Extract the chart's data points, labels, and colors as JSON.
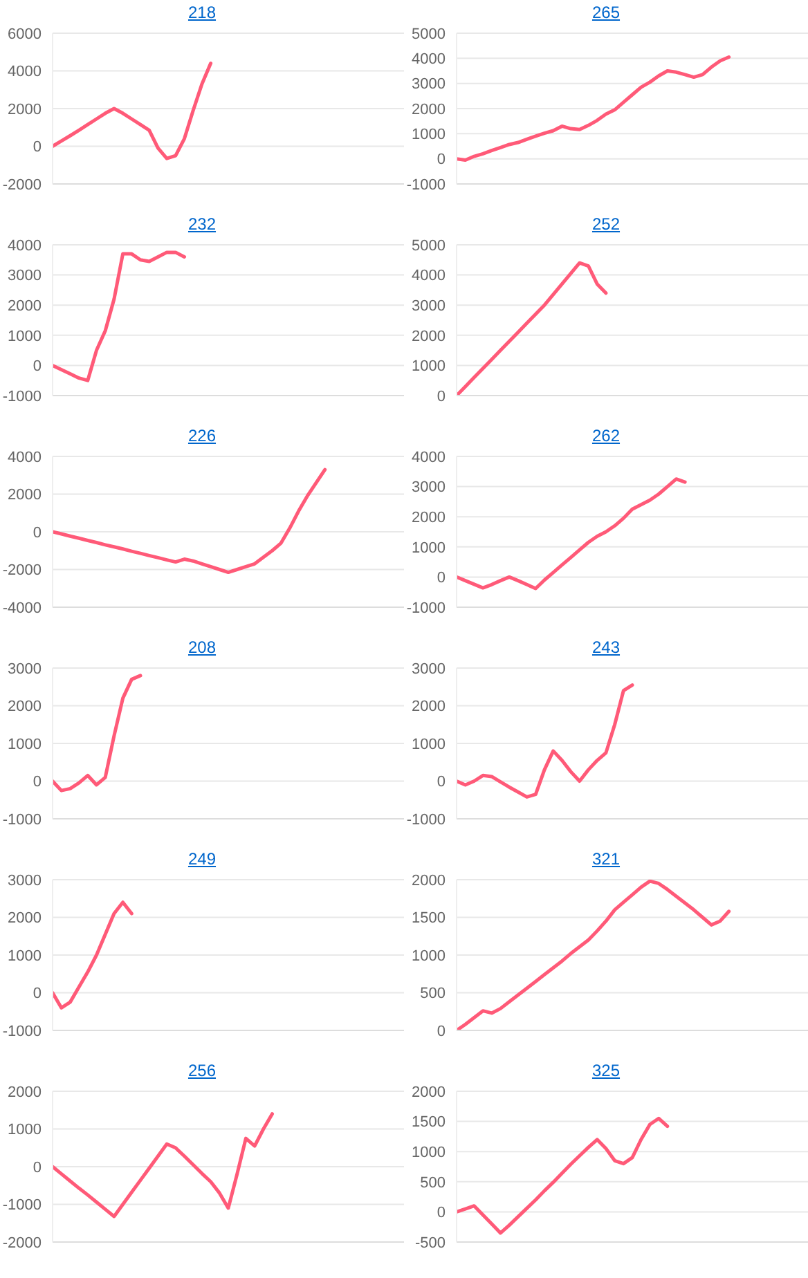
{
  "chart_data": [
    {
      "type": "line",
      "title": "218",
      "categories": [
        null,
        null,
        null,
        null,
        null,
        null,
        null,
        null,
        null,
        null,
        null,
        null,
        null,
        null,
        null,
        null,
        null,
        null,
        null,
        null,
        null,
        null,
        null,
        null,
        null,
        null,
        null,
        null,
        null,
        null,
        null,
        null,
        null,
        null,
        null,
        null,
        null,
        null,
        null,
        null,
        null
      ],
      "series": [
        {
          "color": "#ff5a78",
          "values": [
            0,
            280,
            560,
            850,
            1150,
            1450,
            1750,
            2000,
            1750,
            1450,
            1150,
            850,
            -100,
            -650,
            -500,
            400,
            1900,
            3300,
            4400,
            null,
            null,
            null,
            null,
            null,
            null,
            null,
            null,
            null,
            null,
            null,
            null,
            null,
            null,
            null,
            null,
            null,
            null,
            null,
            null,
            null,
            null
          ]
        }
      ],
      "ylim": [
        -2000,
        6000
      ],
      "yticks": [
        -2000,
        0,
        2000,
        4000,
        6000
      ],
      "grid": "y",
      "marker": "none",
      "line_style": "solid"
    },
    {
      "type": "line",
      "title": "265",
      "categories": [
        null,
        null,
        null,
        null,
        null,
        null,
        null,
        null,
        null,
        null,
        null,
        null,
        null,
        null,
        null,
        null,
        null,
        null,
        null,
        null,
        null,
        null,
        null,
        null,
        null,
        null,
        null,
        null,
        null,
        null,
        null,
        null,
        null,
        null,
        null,
        null,
        null,
        null,
        null,
        null,
        null
      ],
      "series": [
        {
          "color": "#ff5a78",
          "values": [
            0,
            -50,
            100,
            200,
            330,
            450,
            570,
            650,
            780,
            900,
            1020,
            1120,
            1300,
            1200,
            1170,
            1330,
            1530,
            1780,
            1950,
            2250,
            2550,
            2850,
            3050,
            3300,
            3500,
            3450,
            3350,
            3250,
            3350,
            3650,
            3900,
            4050,
            null,
            null,
            null,
            null,
            null,
            null,
            null,
            null,
            null
          ]
        }
      ],
      "ylim": [
        -1000,
        5000
      ],
      "yticks": [
        -1000,
        0,
        1000,
        2000,
        3000,
        4000,
        5000
      ],
      "grid": "y",
      "marker": "none",
      "line_style": "solid"
    },
    {
      "type": "line",
      "title": "232",
      "categories": [
        null,
        null,
        null,
        null,
        null,
        null,
        null,
        null,
        null,
        null,
        null,
        null,
        null,
        null,
        null,
        null,
        null,
        null,
        null,
        null,
        null,
        null,
        null,
        null,
        null,
        null,
        null,
        null,
        null,
        null,
        null,
        null,
        null,
        null,
        null,
        null,
        null,
        null,
        null,
        null,
        null
      ],
      "series": [
        {
          "color": "#ff5a78",
          "values": [
            0,
            -140,
            -280,
            -420,
            -500,
            500,
            1150,
            2200,
            3700,
            3700,
            3500,
            3450,
            3600,
            3750,
            3750,
            3600,
            null,
            null,
            null,
            null,
            null,
            null,
            null,
            null,
            null,
            null,
            null,
            null,
            null,
            null,
            null,
            null,
            null,
            null,
            null,
            null,
            null,
            null,
            null,
            null,
            null
          ]
        }
      ],
      "ylim": [
        -1000,
        4000
      ],
      "yticks": [
        -1000,
        0,
        1000,
        2000,
        3000,
        4000
      ],
      "grid": "y",
      "marker": "none",
      "line_style": "solid"
    },
    {
      "type": "line",
      "title": "252",
      "categories": [
        null,
        null,
        null,
        null,
        null,
        null,
        null,
        null,
        null,
        null,
        null,
        null,
        null,
        null,
        null,
        null,
        null,
        null,
        null,
        null,
        null,
        null,
        null,
        null,
        null,
        null,
        null,
        null,
        null,
        null,
        null,
        null,
        null,
        null,
        null,
        null,
        null,
        null,
        null,
        null,
        null
      ],
      "series": [
        {
          "color": "#ff5a78",
          "values": [
            0,
            300,
            600,
            900,
            1200,
            1500,
            1800,
            2100,
            2400,
            2700,
            3000,
            3350,
            3700,
            4050,
            4400,
            4300,
            3700,
            3400,
            null,
            null,
            null,
            null,
            null,
            null,
            null,
            null,
            null,
            null,
            null,
            null,
            null,
            null,
            null,
            null,
            null,
            null,
            null,
            null,
            null,
            null,
            null
          ]
        }
      ],
      "ylim": [
        0,
        5000
      ],
      "yticks": [
        0,
        1000,
        2000,
        3000,
        4000,
        5000
      ],
      "grid": "y",
      "marker": "none",
      "line_style": "solid"
    },
    {
      "type": "line",
      "title": "226",
      "categories": [
        null,
        null,
        null,
        null,
        null,
        null,
        null,
        null,
        null,
        null,
        null,
        null,
        null,
        null,
        null,
        null,
        null,
        null,
        null,
        null,
        null,
        null,
        null,
        null,
        null,
        null,
        null,
        null,
        null,
        null,
        null,
        null,
        null,
        null,
        null,
        null,
        null,
        null,
        null,
        null,
        null
      ],
      "series": [
        {
          "color": "#ff5a78",
          "values": [
            0,
            -110,
            -230,
            -340,
            -460,
            -570,
            -690,
            -800,
            -910,
            -1030,
            -1140,
            -1260,
            -1370,
            -1490,
            -1600,
            -1450,
            -1550,
            -1700,
            -1850,
            -2000,
            -2150,
            -2000,
            -1850,
            -1700,
            -1350,
            -1000,
            -600,
            200,
            1100,
            1900,
            2600,
            3300,
            null,
            null,
            null,
            null,
            null,
            null,
            null,
            null,
            null
          ]
        }
      ],
      "ylim": [
        -4000,
        4000
      ],
      "yticks": [
        -4000,
        -2000,
        0,
        2000,
        4000
      ],
      "grid": "y",
      "marker": "none",
      "line_style": "solid"
    },
    {
      "type": "line",
      "title": "262",
      "categories": [
        null,
        null,
        null,
        null,
        null,
        null,
        null,
        null,
        null,
        null,
        null,
        null,
        null,
        null,
        null,
        null,
        null,
        null,
        null,
        null,
        null,
        null,
        null,
        null,
        null,
        null,
        null,
        null,
        null,
        null,
        null,
        null,
        null,
        null,
        null,
        null,
        null,
        null,
        null,
        null,
        null
      ],
      "series": [
        {
          "color": "#ff5a78",
          "values": [
            0,
            -120,
            -240,
            -360,
            -250,
            -120,
            0,
            -120,
            -250,
            -380,
            -100,
            150,
            400,
            650,
            900,
            1150,
            1350,
            1500,
            1700,
            1950,
            2250,
            2400,
            2550,
            2750,
            3000,
            3250,
            3150,
            null,
            null,
            null,
            null,
            null,
            null,
            null,
            null,
            null,
            null,
            null,
            null,
            null,
            null
          ]
        }
      ],
      "ylim": [
        -1000,
        4000
      ],
      "yticks": [
        -1000,
        0,
        1000,
        2000,
        3000,
        4000
      ],
      "grid": "y",
      "marker": "none",
      "line_style": "solid"
    },
    {
      "type": "line",
      "title": "208",
      "categories": [
        null,
        null,
        null,
        null,
        null,
        null,
        null,
        null,
        null,
        null,
        null,
        null,
        null,
        null,
        null,
        null,
        null,
        null,
        null,
        null,
        null,
        null,
        null,
        null,
        null,
        null,
        null,
        null,
        null,
        null,
        null,
        null,
        null,
        null,
        null,
        null,
        null,
        null,
        null,
        null,
        null
      ],
      "series": [
        {
          "color": "#ff5a78",
          "values": [
            0,
            -250,
            -200,
            -50,
            150,
            -100,
            100,
            1200,
            2200,
            2700,
            2800,
            null,
            null,
            null,
            null,
            null,
            null,
            null,
            null,
            null,
            null,
            null,
            null,
            null,
            null,
            null,
            null,
            null,
            null,
            null,
            null,
            null,
            null,
            null,
            null,
            null,
            null,
            null,
            null,
            null,
            null
          ]
        }
      ],
      "ylim": [
        -1000,
        3000
      ],
      "yticks": [
        -1000,
        0,
        1000,
        2000,
        3000
      ],
      "grid": "y",
      "marker": "none",
      "line_style": "solid"
    },
    {
      "type": "line",
      "title": "243",
      "categories": [
        null,
        null,
        null,
        null,
        null,
        null,
        null,
        null,
        null,
        null,
        null,
        null,
        null,
        null,
        null,
        null,
        null,
        null,
        null,
        null,
        null,
        null,
        null,
        null,
        null,
        null,
        null,
        null,
        null,
        null,
        null,
        null,
        null,
        null,
        null,
        null,
        null,
        null,
        null,
        null,
        null
      ],
      "series": [
        {
          "color": "#ff5a78",
          "values": [
            0,
            -100,
            0,
            150,
            120,
            -20,
            -160,
            -290,
            -420,
            -350,
            300,
            800,
            550,
            250,
            0,
            300,
            550,
            750,
            1500,
            2400,
            2550,
            null,
            null,
            null,
            null,
            null,
            null,
            null,
            null,
            null,
            null,
            null,
            null,
            null,
            null,
            null,
            null,
            null,
            null,
            null,
            null
          ]
        }
      ],
      "ylim": [
        -1000,
        3000
      ],
      "yticks": [
        -1000,
        0,
        1000,
        2000,
        3000
      ],
      "grid": "y",
      "marker": "none",
      "line_style": "solid"
    },
    {
      "type": "line",
      "title": "249",
      "categories": [
        null,
        null,
        null,
        null,
        null,
        null,
        null,
        null,
        null,
        null,
        null,
        null,
        null,
        null,
        null,
        null,
        null,
        null,
        null,
        null,
        null,
        null,
        null,
        null,
        null,
        null,
        null,
        null,
        null,
        null,
        null,
        null,
        null,
        null,
        null,
        null,
        null,
        null,
        null,
        null,
        null
      ],
      "series": [
        {
          "color": "#ff5a78",
          "values": [
            0,
            -400,
            -250,
            150,
            550,
            1000,
            1550,
            2100,
            2400,
            2100,
            null,
            null,
            null,
            null,
            null,
            null,
            null,
            null,
            null,
            null,
            null,
            null,
            null,
            null,
            null,
            null,
            null,
            null,
            null,
            null,
            null,
            null,
            null,
            null,
            null,
            null,
            null,
            null,
            null,
            null,
            null
          ]
        }
      ],
      "ylim": [
        -1000,
        3000
      ],
      "yticks": [
        -1000,
        0,
        1000,
        2000,
        3000
      ],
      "grid": "y",
      "marker": "none",
      "line_style": "solid"
    },
    {
      "type": "line",
      "title": "321",
      "categories": [
        null,
        null,
        null,
        null,
        null,
        null,
        null,
        null,
        null,
        null,
        null,
        null,
        null,
        null,
        null,
        null,
        null,
        null,
        null,
        null,
        null,
        null,
        null,
        null,
        null,
        null,
        null,
        null,
        null,
        null,
        null,
        null,
        null,
        null,
        null,
        null,
        null,
        null,
        null,
        null,
        null
      ],
      "series": [
        {
          "color": "#ff5a78",
          "values": [
            0,
            80,
            170,
            260,
            230,
            290,
            380,
            470,
            560,
            650,
            740,
            830,
            920,
            1020,
            1110,
            1200,
            1320,
            1450,
            1600,
            1700,
            1800,
            1900,
            1980,
            1950,
            1870,
            1780,
            1690,
            1600,
            1500,
            1400,
            1450,
            1580,
            null,
            null,
            null,
            null,
            null,
            null,
            null,
            null,
            null
          ]
        }
      ],
      "ylim": [
        0,
        2000
      ],
      "yticks": [
        0,
        500,
        1000,
        1500,
        2000
      ],
      "grid": "y",
      "marker": "none",
      "line_style": "solid"
    },
    {
      "type": "line",
      "title": "256",
      "categories": [
        null,
        null,
        null,
        null,
        null,
        null,
        null,
        null,
        null,
        null,
        null,
        null,
        null,
        null,
        null,
        null,
        null,
        null,
        null,
        null,
        null,
        null,
        null,
        null,
        null,
        null,
        null,
        null,
        null,
        null,
        null,
        null,
        null,
        null,
        null,
        null,
        null,
        null,
        null,
        null,
        null
      ],
      "series": [
        {
          "color": "#ff5a78",
          "values": [
            0,
            -190,
            -380,
            -570,
            -750,
            -940,
            -1130,
            -1320,
            -1000,
            -680,
            -360,
            -40,
            280,
            600,
            500,
            280,
            50,
            -180,
            -400,
            -700,
            -1100,
            -200,
            750,
            550,
            1000,
            1400,
            null,
            null,
            null,
            null,
            null,
            null,
            null,
            null,
            null,
            null,
            null,
            null,
            null,
            null,
            null
          ]
        }
      ],
      "ylim": [
        -2000,
        2000
      ],
      "yticks": [
        -2000,
        -1000,
        0,
        1000,
        2000
      ],
      "grid": "y",
      "marker": "none",
      "line_style": "solid"
    },
    {
      "type": "line",
      "title": "325",
      "categories": [
        null,
        null,
        null,
        null,
        null,
        null,
        null,
        null,
        null,
        null,
        null,
        null,
        null,
        null,
        null,
        null,
        null,
        null,
        null,
        null,
        null,
        null,
        null,
        null,
        null,
        null,
        null,
        null,
        null,
        null,
        null,
        null,
        null,
        null,
        null,
        null,
        null,
        null,
        null,
        null,
        null
      ],
      "series": [
        {
          "color": "#ff5a78",
          "values": [
            0,
            50,
            100,
            -50,
            -200,
            -350,
            -220,
            -80,
            60,
            200,
            350,
            490,
            640,
            790,
            930,
            1070,
            1200,
            1050,
            850,
            800,
            900,
            1200,
            1450,
            1550,
            1420,
            null,
            null,
            null,
            null,
            null,
            null,
            null,
            null,
            null,
            null,
            null,
            null,
            null,
            null,
            null,
            null
          ]
        }
      ],
      "ylim": [
        -500,
        2000
      ],
      "yticks": [
        -500,
        0,
        500,
        1000,
        1500,
        2000
      ],
      "grid": "y",
      "marker": "none",
      "line_style": "solid"
    }
  ]
}
